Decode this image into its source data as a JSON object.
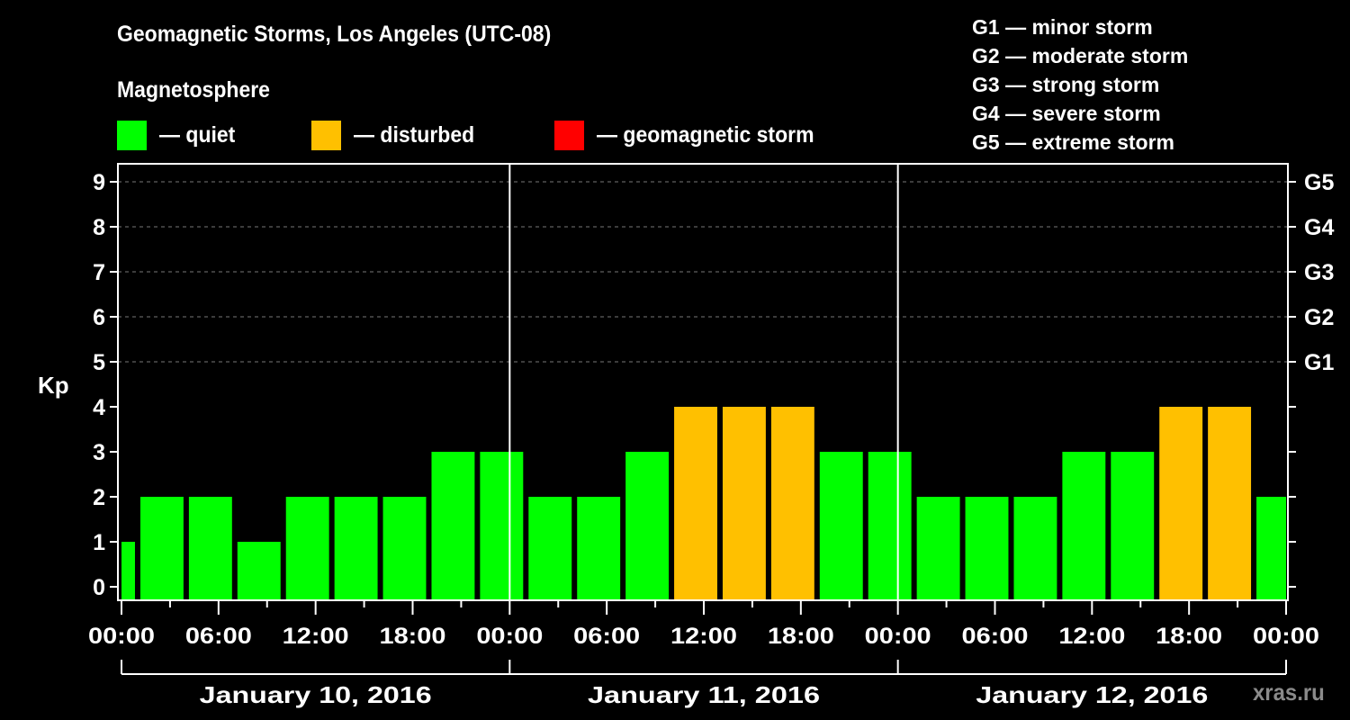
{
  "header": {
    "title": "Geomagnetic Storms, Los Angeles (UTC-08)",
    "subtitle": "Magnetosphere"
  },
  "legend": {
    "items": [
      {
        "label": "— quiet",
        "color": "#00ff00"
      },
      {
        "label": "— disturbed",
        "color": "#ffc000"
      },
      {
        "label": "— geomagnetic storm",
        "color": "#ff0000"
      }
    ]
  },
  "g_scale": [
    "G1 — minor storm",
    "G2 — moderate storm",
    "G3 — strong storm",
    "G4 — severe storm",
    "G5 — extreme storm"
  ],
  "axis": {
    "ylabel": "Kp",
    "right_labels": [
      "G1",
      "G2",
      "G3",
      "G4",
      "G5"
    ]
  },
  "watermark": "xras.ru",
  "chart_data": {
    "type": "bar",
    "title": "Geomagnetic Storms, Los Angeles (UTC-08)",
    "subtitle": "Magnetosphere",
    "xlabel": "",
    "ylabel": "Kp",
    "ylim": [
      0,
      9
    ],
    "yticks": [
      0,
      1,
      2,
      3,
      4,
      5,
      6,
      7,
      8,
      9
    ],
    "right_axis": {
      "ticks": [
        5,
        6,
        7,
        8,
        9
      ],
      "labels": [
        "G1",
        "G2",
        "G3",
        "G4",
        "G5"
      ]
    },
    "grid": "dashed horizontal lines at Kp 5-9",
    "x_tick_labels": [
      "00:00",
      "06:00",
      "12:00",
      "18:00",
      "00:00",
      "06:00",
      "12:00",
      "18:00",
      "00:00",
      "06:00",
      "12:00",
      "18:00",
      "00:00"
    ],
    "date_labels": [
      "January 10, 2016",
      "January 11, 2016",
      "January 12, 2016"
    ],
    "interval_hours": 3,
    "categories": [
      "Jan 10 00:00",
      "Jan 10 01:00",
      "Jan 10 04:00",
      "Jan 10 07:00",
      "Jan 10 10:00",
      "Jan 10 13:00",
      "Jan 10 16:00",
      "Jan 10 19:00",
      "Jan 10 22:00",
      "Jan 11 01:00",
      "Jan 11 04:00",
      "Jan 11 07:00",
      "Jan 11 10:00",
      "Jan 11 13:00",
      "Jan 11 16:00",
      "Jan 11 19:00",
      "Jan 11 22:00",
      "Jan 12 01:00",
      "Jan 12 04:00",
      "Jan 12 07:00",
      "Jan 12 10:00",
      "Jan 12 13:00",
      "Jan 12 16:00",
      "Jan 12 19:00",
      "Jan 12 22:00"
    ],
    "bar_start_hours": [
      0,
      1,
      4,
      7,
      10,
      13,
      16,
      19,
      22,
      25,
      28,
      31,
      34,
      37,
      40,
      43,
      46,
      49,
      52,
      55,
      58,
      61,
      64,
      67,
      70
    ],
    "bar_end_hours": [
      1,
      4,
      7,
      10,
      13,
      16,
      19,
      22,
      25,
      28,
      31,
      34,
      37,
      40,
      43,
      46,
      49,
      52,
      55,
      58,
      61,
      64,
      67,
      70,
      72
    ],
    "values": [
      1,
      2,
      2,
      1,
      2,
      2,
      2,
      3,
      3,
      2,
      2,
      3,
      4,
      4,
      4,
      3,
      3,
      2,
      2,
      2,
      3,
      3,
      4,
      4,
      2
    ],
    "status": [
      "quiet",
      "quiet",
      "quiet",
      "quiet",
      "quiet",
      "quiet",
      "quiet",
      "quiet",
      "quiet",
      "quiet",
      "quiet",
      "quiet",
      "disturbed",
      "disturbed",
      "disturbed",
      "quiet",
      "quiet",
      "quiet",
      "quiet",
      "quiet",
      "quiet",
      "quiet",
      "disturbed",
      "disturbed",
      "quiet"
    ],
    "colors": {
      "quiet": "#00ff00",
      "disturbed": "#ffc000",
      "storm": "#ff0000"
    }
  }
}
